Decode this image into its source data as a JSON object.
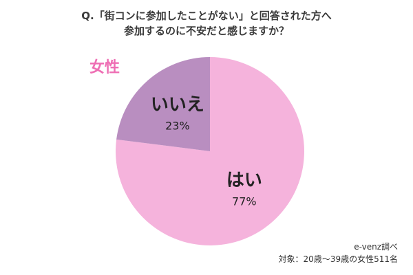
{
  "title": {
    "line1": "Q.「街コンに参加したことがない」と回答された方へ",
    "line2": "参加するのに不安だと感じますか？"
  },
  "group_label": "女性",
  "source": {
    "line1": "e-venz調べ",
    "line2": "対象：20歳〜39歳の女性511名"
  },
  "colors": {
    "yes": "#f5b3dc",
    "no": "#b98ec0",
    "accent": "#ee6fb4"
  },
  "chart_data": {
    "type": "pie",
    "title": "Q.「街コンに参加したことがない」と回答された方へ 参加するのに不安だと感じますか？",
    "start": "top",
    "direction": "clockwise",
    "slices": [
      {
        "label": "はい",
        "value": 77,
        "display": "77%",
        "color": "#f5b3dc"
      },
      {
        "label": "いいえ",
        "value": 23,
        "display": "23%",
        "color": "#b98ec0"
      }
    ]
  }
}
